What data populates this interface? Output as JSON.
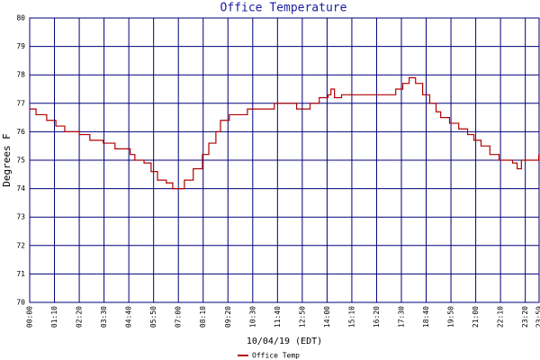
{
  "chart_data": {
    "type": "line",
    "title": "Office Temperature",
    "x_label": "10/04/19 (EDT)",
    "y_label": "Degrees F",
    "x": [
      0,
      18,
      48,
      74,
      99,
      140,
      170,
      208,
      241,
      284,
      297,
      323,
      343,
      361,
      386,
      404,
      437,
      462,
      488,
      506,
      526,
      539,
      564,
      615,
      691,
      754,
      792,
      818,
      843,
      851,
      861,
      881,
      1021,
      1034,
      1054,
      1072,
      1090,
      1110,
      1130,
      1148,
      1161,
      1186,
      1212,
      1237,
      1255,
      1275,
      1300,
      1326,
      1364,
      1377,
      1389,
      1435,
      1438
    ],
    "series": [
      {
        "name": "Office Temp",
        "color": "#b00000",
        "values": [
          76.8,
          76.6,
          76.4,
          76.2,
          76.0,
          75.9,
          75.7,
          75.6,
          75.4,
          75.2,
          75.0,
          74.9,
          74.6,
          74.3,
          74.2,
          74.0,
          74.3,
          74.7,
          75.2,
          75.6,
          76.0,
          76.4,
          76.6,
          76.8,
          77.0,
          76.8,
          77.0,
          77.2,
          77.3,
          77.5,
          77.2,
          77.3,
          77.3,
          77.5,
          77.7,
          77.9,
          77.7,
          77.3,
          77.0,
          76.7,
          76.5,
          76.3,
          76.1,
          75.9,
          75.7,
          75.5,
          75.2,
          75.0,
          74.9,
          74.7,
          75.0,
          75.0,
          75.2
        ]
      }
    ],
    "xlim": [
      0,
      1439
    ],
    "ylim": [
      70,
      80
    ],
    "xticks": [
      {
        "value": 0,
        "label": "00:00"
      },
      {
        "value": 70,
        "label": "01:10"
      },
      {
        "value": 140,
        "label": "02:20"
      },
      {
        "value": 210,
        "label": "03:30"
      },
      {
        "value": 280,
        "label": "04:40"
      },
      {
        "value": 350,
        "label": "05:50"
      },
      {
        "value": 420,
        "label": "07:00"
      },
      {
        "value": 490,
        "label": "08:10"
      },
      {
        "value": 560,
        "label": "09:20"
      },
      {
        "value": 630,
        "label": "10:30"
      },
      {
        "value": 700,
        "label": "11:40"
      },
      {
        "value": 770,
        "label": "12:50"
      },
      {
        "value": 840,
        "label": "14:00"
      },
      {
        "value": 910,
        "label": "15:10"
      },
      {
        "value": 980,
        "label": "16:20"
      },
      {
        "value": 1050,
        "label": "17:30"
      },
      {
        "value": 1120,
        "label": "18:40"
      },
      {
        "value": 1190,
        "label": "19:50"
      },
      {
        "value": 1260,
        "label": "21:00"
      },
      {
        "value": 1330,
        "label": "22:10"
      },
      {
        "value": 1400,
        "label": "23:20"
      },
      {
        "value": 1439,
        "label": "23:59"
      }
    ],
    "yticks": [
      70,
      71,
      72,
      73,
      74,
      75,
      76,
      77,
      78,
      79,
      80
    ],
    "grid": true,
    "grid_color": "#00007a",
    "line_style": "step"
  }
}
